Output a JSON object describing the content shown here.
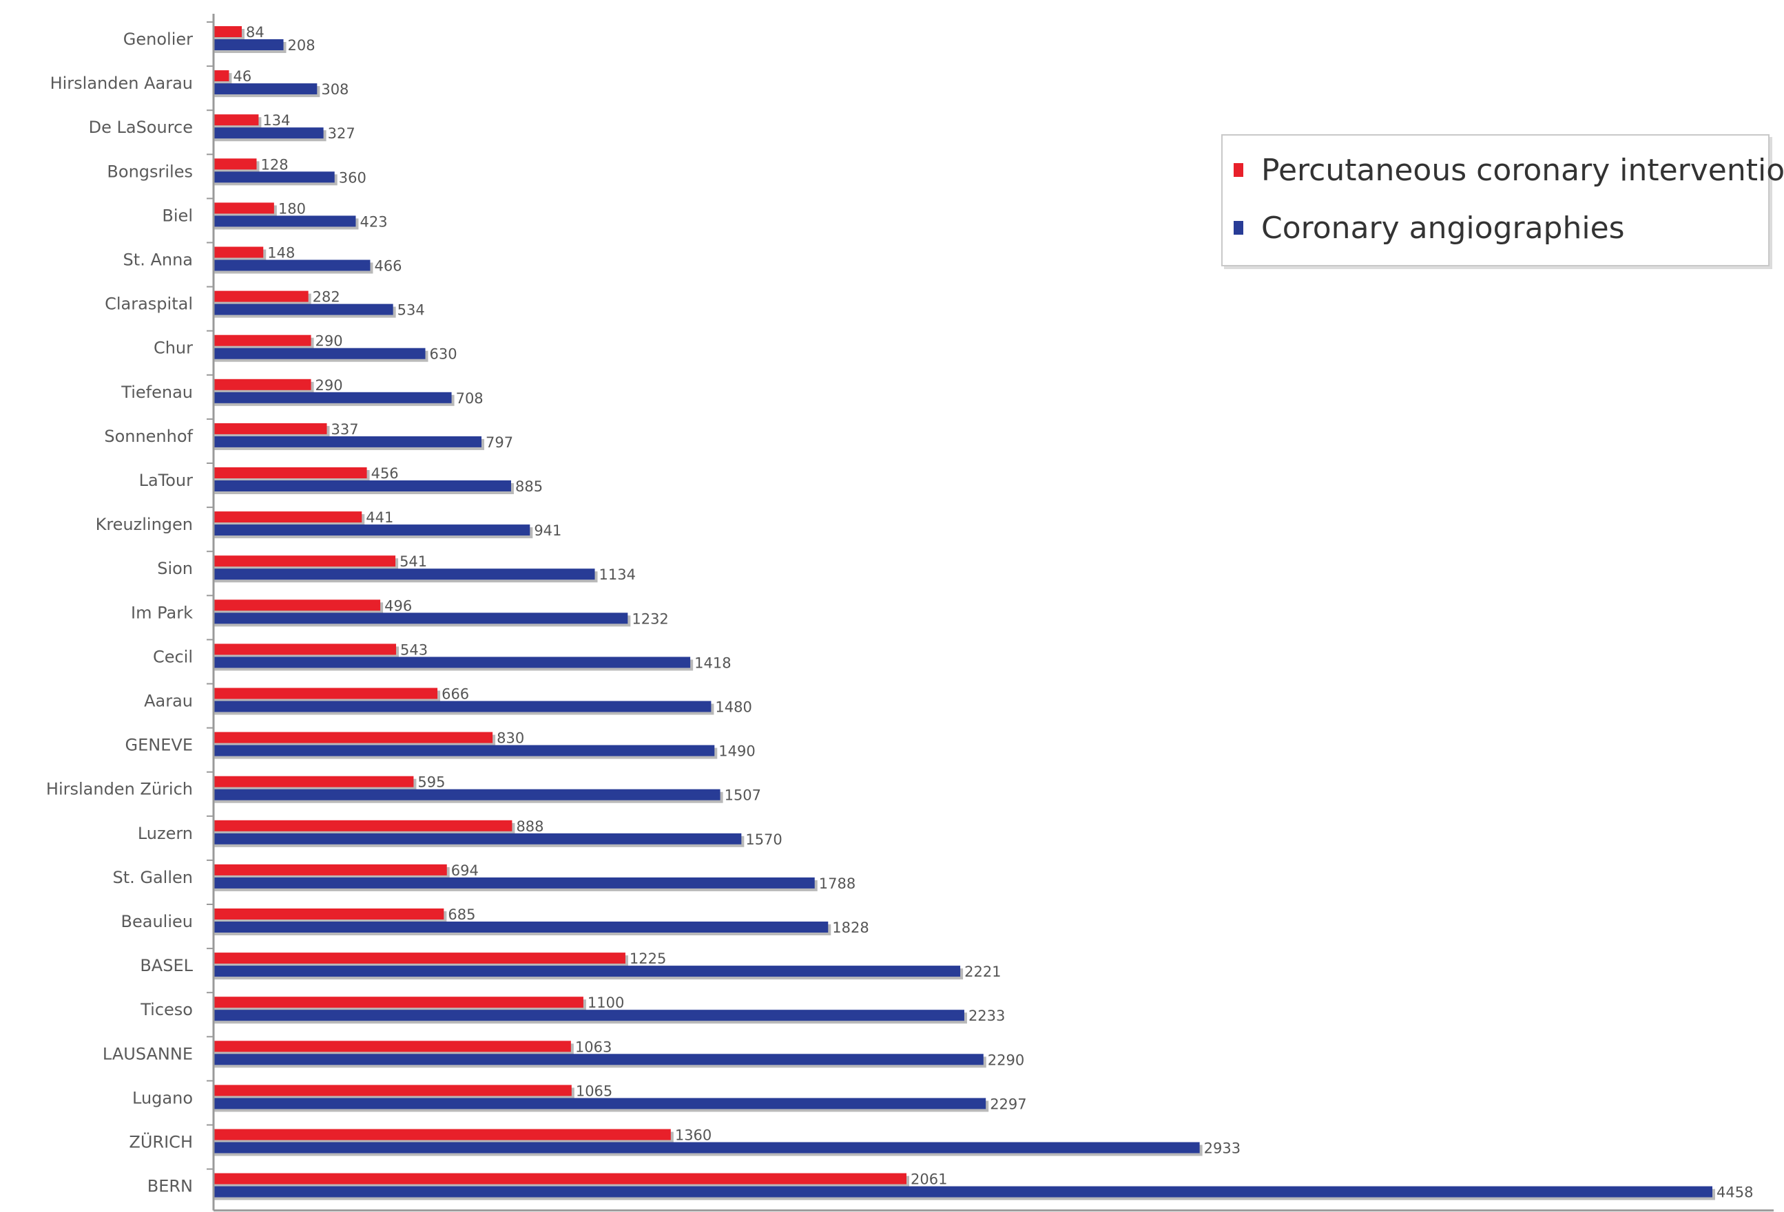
{
  "chart_data": {
    "type": "bar",
    "orientation": "horizontal",
    "title": "",
    "xlabel": "",
    "ylabel": "",
    "xlim": [
      0,
      4600
    ],
    "grid": false,
    "legend_position": "top-right",
    "categories": [
      "Genolier",
      "Hirslanden Aarau",
      "De LaSource",
      "Bongsriles",
      "Biel",
      "St. Anna",
      "Claraspital",
      "Chur",
      "Tiefenau",
      "Sonnenhof",
      "LaTour",
      "Kreuzlingen",
      "Sion",
      "Im Park",
      "Cecil",
      "Aarau",
      "GENEVE",
      "Hirslanden Zürich",
      "Luzern",
      "St. Gallen",
      "Beaulieu",
      "BASEL",
      "Ticeso",
      "LAUSANNE",
      "Lugano",
      "ZÜRICH",
      "BERN"
    ],
    "series": [
      {
        "name": "Percutaneous coronary interventions",
        "color": "#e8202a",
        "values": [
          84,
          46,
          134,
          128,
          180,
          148,
          282,
          290,
          290,
          337,
          456,
          441,
          541,
          496,
          543,
          666,
          830,
          595,
          888,
          694,
          685,
          1225,
          1100,
          1063,
          1065,
          1360,
          2061
        ],
        "labels": [
          "84",
          "46",
          "134",
          "128",
          "180",
          "148",
          "282",
          "290",
          "290",
          "337",
          "456",
          "441",
          "541",
          "496",
          "543",
          "666",
          "830",
          "595",
          "888",
          "694",
          "685",
          "1225",
          "1100",
          "1063",
          "1065",
          "1360",
          "2061"
        ]
      },
      {
        "name": "Coronary angiographies",
        "color": "#283c96",
        "values": [
          208,
          308,
          327,
          360,
          423,
          466,
          534,
          630,
          708,
          797,
          885,
          941,
          1134,
          1232,
          1418,
          1480,
          1490,
          1507,
          1570,
          1788,
          1828,
          2221,
          2233,
          2290,
          2297,
          2933,
          4458
        ],
        "labels": [
          "208",
          "308",
          "327",
          "360",
          "423",
          "466",
          "534",
          "630",
          "708",
          "797",
          "885",
          "941",
          "1134",
          "1232",
          "1418",
          "1480",
          "1490",
          "1507",
          "1570",
          "1788",
          "1828",
          "2221",
          "2233",
          "2290",
          "2297",
          "2933",
          "4458"
        ]
      }
    ]
  }
}
